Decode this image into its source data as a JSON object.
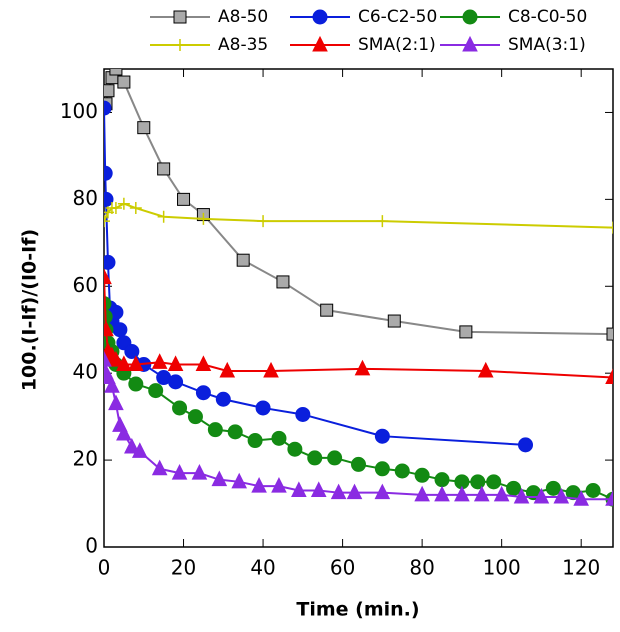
{
  "chart_data": {
    "type": "line",
    "x_label": "Time (min.)",
    "y_label": "100.(I-If)/(I0-If)",
    "xlim": [
      0,
      128
    ],
    "ylim": [
      0,
      110
    ],
    "xticks": [
      0,
      20,
      40,
      60,
      80,
      100,
      120
    ],
    "yticks": [
      0,
      20,
      40,
      60,
      80,
      100
    ],
    "series": [
      {
        "name": "A8-50",
        "color": "#888888",
        "marker": "square",
        "x": [
          0.5,
          1,
          2,
          3,
          5,
          10,
          15,
          20,
          25,
          35,
          45,
          56,
          73,
          91,
          128
        ],
        "values": [
          102,
          105,
          108,
          110,
          107,
          96.5,
          87,
          80,
          76.5,
          66,
          61,
          54.5,
          52,
          49.5,
          49
        ]
      },
      {
        "name": "C6-C2-50",
        "color": "#0a1fdc",
        "marker": "circle",
        "x": [
          0,
          0.3,
          0.5,
          1,
          1.5,
          2,
          3,
          4,
          5,
          7,
          10,
          15,
          18,
          25,
          30,
          40,
          50,
          70,
          106
        ],
        "values": [
          101,
          86,
          80,
          65.5,
          55,
          52,
          54,
          50,
          47,
          45,
          42,
          39,
          38,
          35.5,
          34,
          32,
          30.5,
          25.5,
          23.5
        ]
      },
      {
        "name": "C8-C0-50",
        "color": "#138a13",
        "marker": "circle",
        "x": [
          0,
          0.3,
          0.5,
          1,
          2,
          3,
          5,
          8,
          13,
          19,
          23,
          28,
          33,
          38,
          44,
          48,
          53,
          58,
          64,
          70,
          75,
          80,
          85,
          90,
          94,
          98,
          103,
          108,
          113,
          118,
          123,
          128
        ],
        "values": [
          56,
          53,
          50,
          47,
          45,
          42,
          40,
          37.5,
          36,
          32,
          30,
          27,
          26.5,
          24.5,
          25,
          22.5,
          20.5,
          20.5,
          19,
          18,
          17.5,
          16.5,
          15.5,
          15,
          15,
          15,
          13.5,
          12.5,
          13.5,
          12.5,
          13,
          11
        ]
      },
      {
        "name": "A8-35",
        "color": "#cccc00",
        "marker": "plus",
        "x": [
          0,
          1,
          2,
          3,
          5,
          8,
          15,
          25,
          40,
          70,
          128
        ],
        "values": [
          75,
          77,
          78,
          78,
          79,
          78,
          76,
          75.5,
          75,
          75,
          73.5
        ]
      },
      {
        "name": "SMA(2:1)",
        "color": "#ee0000",
        "marker": "triangle",
        "x": [
          0,
          0.5,
          1,
          2,
          3,
          5,
          8,
          14,
          18,
          25,
          31,
          42,
          65,
          96,
          128
        ],
        "values": [
          62,
          50,
          45,
          44,
          43,
          42,
          42,
          42.5,
          42,
          42,
          40.5,
          40.5,
          41,
          40.5,
          39
        ]
      },
      {
        "name": "SMA(3:1)",
        "color": "#8a2be2",
        "marker": "triangle",
        "x": [
          0,
          0.5,
          1,
          2,
          3,
          4,
          5,
          7,
          9,
          14,
          19,
          24,
          29,
          34,
          39,
          44,
          49,
          54,
          59,
          63,
          70,
          80,
          85,
          90,
          95,
          100,
          105,
          110,
          115,
          120,
          128
        ],
        "values": [
          43,
          40,
          39,
          37,
          33,
          28,
          26,
          23,
          22,
          18,
          17,
          17,
          15.5,
          15,
          14,
          14,
          13,
          13,
          12.5,
          12.5,
          12.5,
          12,
          12,
          12,
          12,
          12,
          11.5,
          11.5,
          11.5,
          11,
          11
        ]
      }
    ]
  }
}
